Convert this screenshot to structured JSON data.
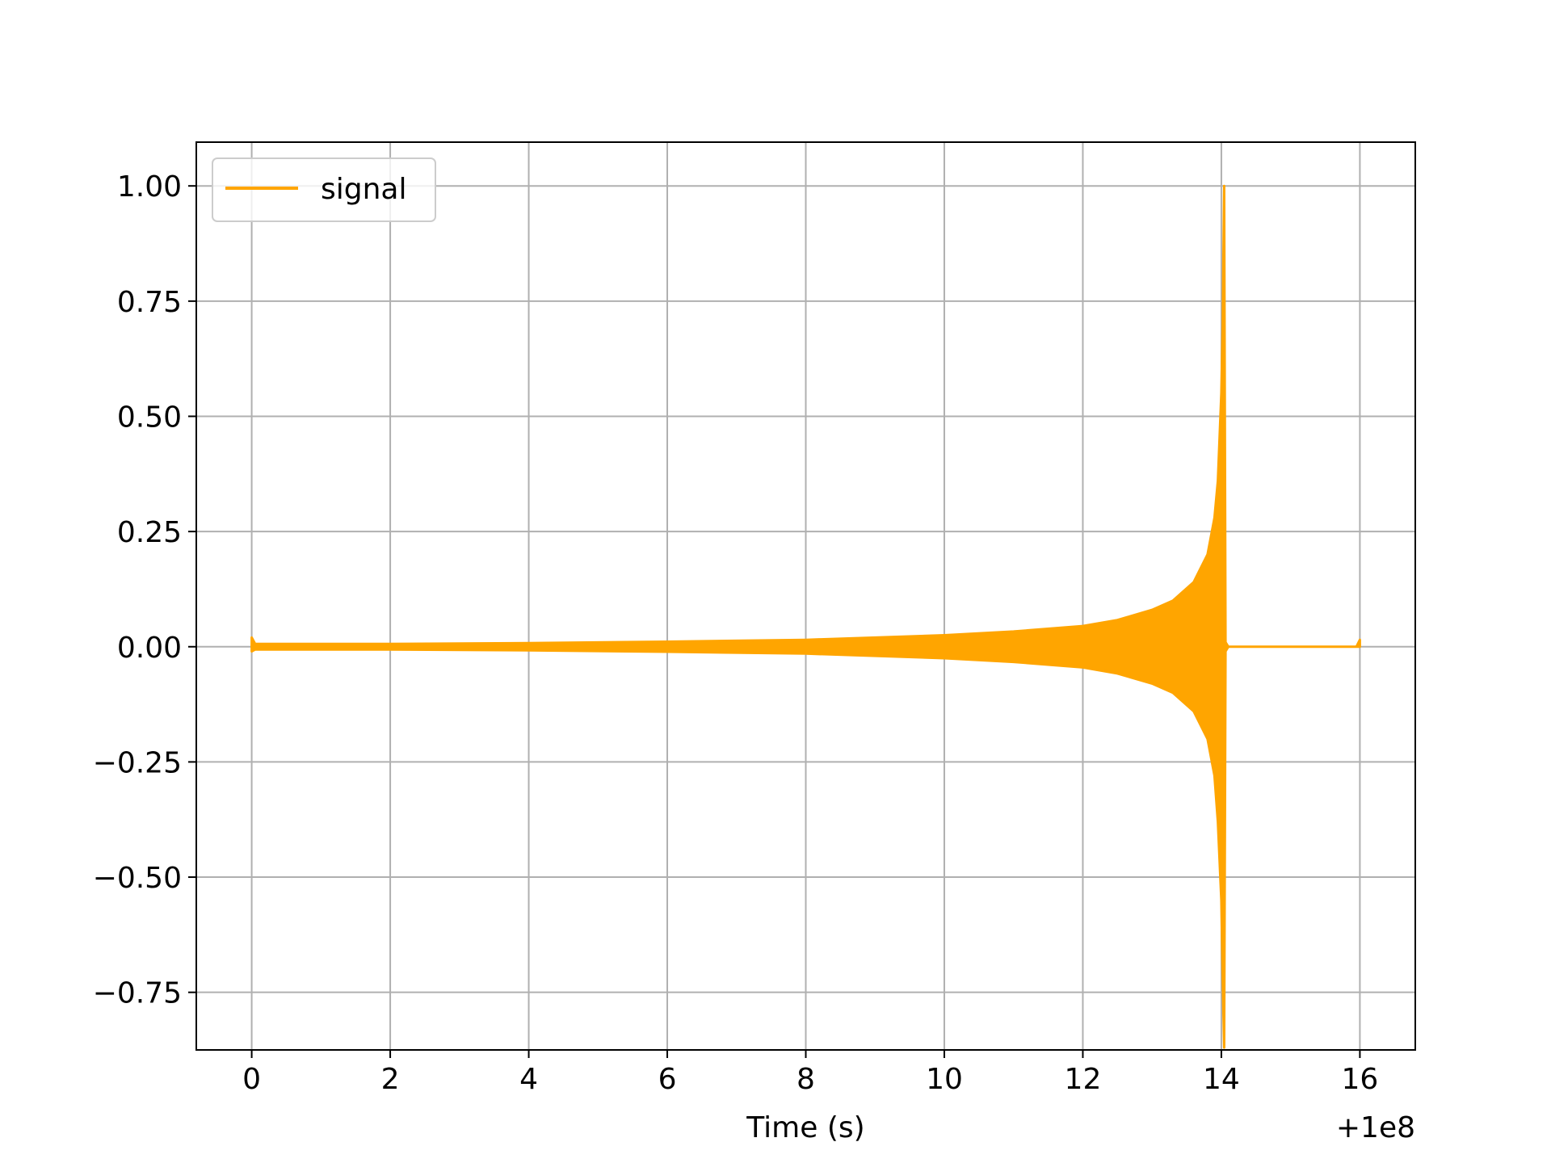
{
  "chart_data": {
    "type": "line",
    "title": "",
    "xlabel": "Time (s)",
    "ylabel": "",
    "x_offset_label": "+1e8",
    "xlim": [
      -0.8,
      16.8
    ],
    "ylim": [
      -0.875,
      1.095
    ],
    "xticks": [
      0,
      2,
      4,
      6,
      8,
      10,
      12,
      14,
      16
    ],
    "xtick_labels": [
      "0",
      "2",
      "4",
      "6",
      "8",
      "10",
      "12",
      "14",
      "16"
    ],
    "yticks": [
      -0.75,
      -0.5,
      -0.25,
      0.0,
      0.25,
      0.5,
      0.75,
      1.0
    ],
    "ytick_labels": [
      "−0.75",
      "−0.50",
      "−0.25",
      "0.00",
      "0.25",
      "0.50",
      "0.75",
      "1.00"
    ],
    "grid": true,
    "legend_position": "top-left",
    "series": [
      {
        "name": "signal",
        "color": "#ffa500",
        "envelope": [
          {
            "x": 0.0,
            "upper": 0.02,
            "lower": -0.01
          },
          {
            "x": 0.05,
            "upper": 0.006,
            "lower": -0.006
          },
          {
            "x": 2.0,
            "upper": 0.006,
            "lower": -0.006
          },
          {
            "x": 4.0,
            "upper": 0.008,
            "lower": -0.008
          },
          {
            "x": 6.0,
            "upper": 0.011,
            "lower": -0.011
          },
          {
            "x": 8.0,
            "upper": 0.015,
            "lower": -0.015
          },
          {
            "x": 10.0,
            "upper": 0.025,
            "lower": -0.025
          },
          {
            "x": 11.0,
            "upper": 0.033,
            "lower": -0.033
          },
          {
            "x": 12.0,
            "upper": 0.045,
            "lower": -0.045
          },
          {
            "x": 12.5,
            "upper": 0.058,
            "lower": -0.058
          },
          {
            "x": 13.0,
            "upper": 0.08,
            "lower": -0.08
          },
          {
            "x": 13.3,
            "upper": 0.1,
            "lower": -0.1
          },
          {
            "x": 13.6,
            "upper": 0.14,
            "lower": -0.14
          },
          {
            "x": 13.8,
            "upper": 0.2,
            "lower": -0.2
          },
          {
            "x": 13.9,
            "upper": 0.28,
            "lower": -0.28
          },
          {
            "x": 13.95,
            "upper": 0.36,
            "lower": -0.38
          },
          {
            "x": 14.0,
            "upper": 0.55,
            "lower": -0.55
          },
          {
            "x": 14.02,
            "upper": 0.7,
            "lower": -0.72
          },
          {
            "x": 14.04,
            "upper": 1.0,
            "lower": -0.87
          },
          {
            "x": 14.06,
            "upper": 0.01,
            "lower": -0.01
          },
          {
            "x": 14.1,
            "upper": 0.0,
            "lower": 0.0
          },
          {
            "x": 15.95,
            "upper": 0.0,
            "lower": 0.0
          },
          {
            "x": 16.0,
            "upper": 0.015,
            "lower": 0.0
          }
        ]
      }
    ]
  }
}
